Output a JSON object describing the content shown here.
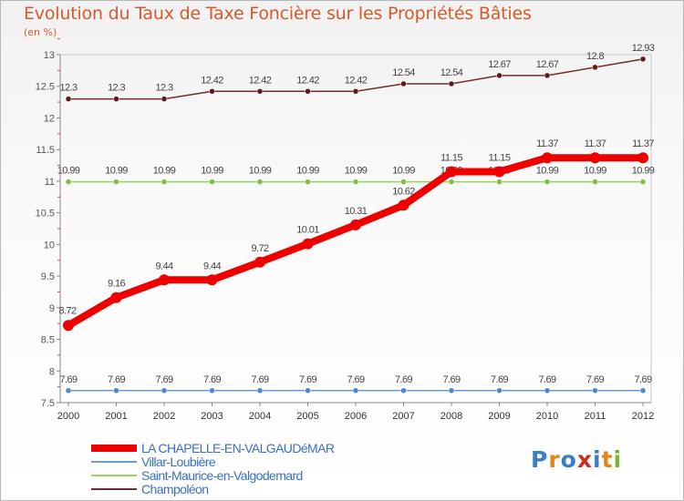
{
  "chart_data": {
    "type": "line",
    "title": "Evolution du Taux de Taxe Foncière sur les Propriétés Bâties",
    "ylabel": "(en %)",
    "ylim": [
      7.5,
      13
    ],
    "yticks": [
      "7.5",
      "8",
      "8.5",
      "9",
      "9.5",
      "10",
      "10.5",
      "11",
      "11.5",
      "12",
      "12.5",
      "13"
    ],
    "x": [
      "2000",
      "2001",
      "2002",
      "2003",
      "2004",
      "2005",
      "2006",
      "2007",
      "2008",
      "2009",
      "2010",
      "2011",
      "2012"
    ],
    "series": [
      {
        "name": "Champoléon",
        "color": "#7a2a2a",
        "marker": "#5e1a1a",
        "values": [
          12.3,
          12.3,
          12.3,
          12.42,
          12.42,
          12.42,
          12.42,
          12.54,
          12.54,
          12.67,
          12.67,
          12.8,
          12.93
        ],
        "labels": [
          "12.3",
          "12.3",
          "12.3",
          "12.42",
          "12.42",
          "12.42",
          "12.42",
          "12.54",
          "12.54",
          "12.67",
          "12.67",
          "12.8",
          "12.93"
        ]
      },
      {
        "name": "Saint-Maurice-en-Valgodemard",
        "color": "#99d163",
        "marker": "#7fbf45",
        "values": [
          10.99,
          10.99,
          10.99,
          10.99,
          10.99,
          10.99,
          10.99,
          10.99,
          10.99,
          10.99,
          10.99,
          10.99,
          10.99
        ],
        "labels": [
          "10.99",
          "10.99",
          "10.99",
          "10.99",
          "10.99",
          "10.99",
          "10.99",
          "10.99",
          "10.99",
          "10.99",
          "10.99",
          "10.99",
          "10.99"
        ]
      },
      {
        "name": "Villar-Loubière",
        "color": "#6a9ccc",
        "marker": "#4d88c4",
        "values": [
          7.69,
          7.69,
          7.69,
          7.69,
          7.69,
          7.69,
          7.69,
          7.69,
          7.69,
          7.69,
          7.69,
          7.69,
          7.69
        ],
        "labels": [
          "7.69",
          "7.69",
          "7.69",
          "7.69",
          "7.69",
          "7.69",
          "7.69",
          "7.69",
          "7.69",
          "7.69",
          "7.69",
          "7.69",
          "7.69"
        ]
      },
      {
        "name": "LA CHAPELLE-EN-VALGAUDéMAR",
        "color": "#ee0000",
        "marker": "#ee0000",
        "values": [
          8.72,
          9.16,
          9.44,
          9.44,
          9.72,
          10.01,
          10.31,
          10.62,
          11.15,
          11.15,
          11.37,
          11.37,
          11.37
        ],
        "labels": [
          "8.72",
          "9.16",
          "9.44",
          "9.44",
          "9.72",
          "10.01",
          "10.31",
          "10.62",
          "11.15",
          "11.15",
          "11.37",
          "11.37",
          "11.37"
        ]
      }
    ],
    "legend": [
      "LA CHAPELLE-EN-VALGAUDéMAR",
      "Villar-Loubière",
      "Saint-Maurice-en-Valgodemard",
      "Champoléon"
    ]
  },
  "logo": {
    "letters": [
      "P",
      "r",
      "o",
      "x",
      "i",
      "t",
      "i"
    ],
    "colors": [
      "#3a7fc4",
      "#e2871b",
      "#3a7fc4",
      "#d42a1c",
      "#3a7fc4",
      "#e2871b",
      "#77b52d"
    ]
  }
}
